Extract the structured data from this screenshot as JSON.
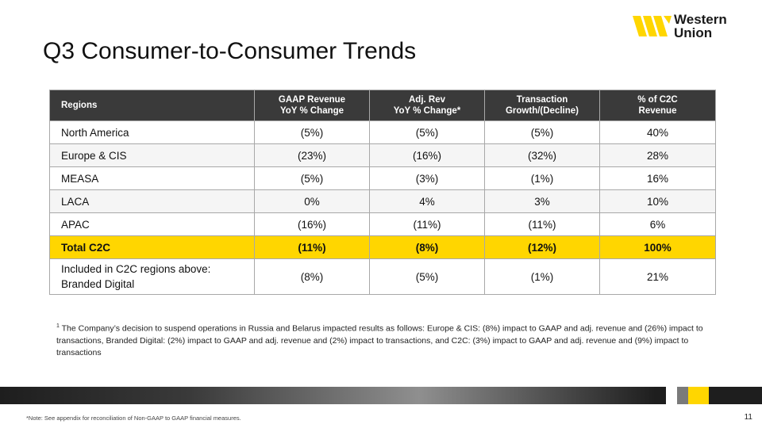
{
  "slide": {
    "title": "Q3 Consumer-to-Consumer Trends",
    "logo": {
      "line1": "Western",
      "line2": "Union"
    },
    "table": {
      "headers": {
        "regions": "Regions",
        "gaap_line1": "GAAP Revenue",
        "gaap_line2": "YoY % Change",
        "adj_line1": "Adj. Rev",
        "adj_line2": "YoY % Change*",
        "txn_line1": "Transaction",
        "txn_line2": "Growth/(Decline)",
        "pct_line1": "% of C2C",
        "pct_line2": "Revenue"
      },
      "rows": [
        {
          "region": "North America",
          "gaap": "(5%)",
          "adj": "(5%)",
          "txn": "(5%)",
          "pct": "40%"
        },
        {
          "region": "Europe & CIS",
          "gaap": "(23%)",
          "adj": "(16%)",
          "txn": "(32%)",
          "pct": "28%"
        },
        {
          "region": "MEASA",
          "gaap": "(5%)",
          "adj": "(3%)",
          "txn": "(1%)",
          "pct": "16%"
        },
        {
          "region": "LACA",
          "gaap": "0%",
          "adj": "4%",
          "txn": "3%",
          "pct": "10%"
        },
        {
          "region": "APAC",
          "gaap": "(16%)",
          "adj": "(11%)",
          "txn": "(11%)",
          "pct": "6%"
        }
      ],
      "total": {
        "region": "Total C2C",
        "gaap": "(11%)",
        "adj": "(8%)",
        "txn": "(12%)",
        "pct": "100%"
      },
      "branded": {
        "region_line1": "Included in C2C regions above:",
        "region_line2": "Branded Digital",
        "gaap": "(8%)",
        "adj": "(5%)",
        "txn": "(1%)",
        "pct": "21%"
      }
    },
    "footnote": {
      "marker": "1",
      "text": "The Company’s decision to suspend operations in Russia and Belarus impacted results as follows: Europe & CIS: (8%) impact to GAAP and adj. revenue and (26%) impact to transactions, Branded Digital: (2%) impact to GAAP and adj. revenue and (2%) impact to transactions, and C2C: (3%) impact to GAAP and adj. revenue and (9%) impact to transactions"
    },
    "bottom_note": "*Note: See appendix for reconciliation of Non-GAAP to GAAP financial measures.",
    "page_number": "11",
    "colors": {
      "brand_yellow": "#ffd600",
      "header_dark": "#3a3a3a"
    }
  }
}
